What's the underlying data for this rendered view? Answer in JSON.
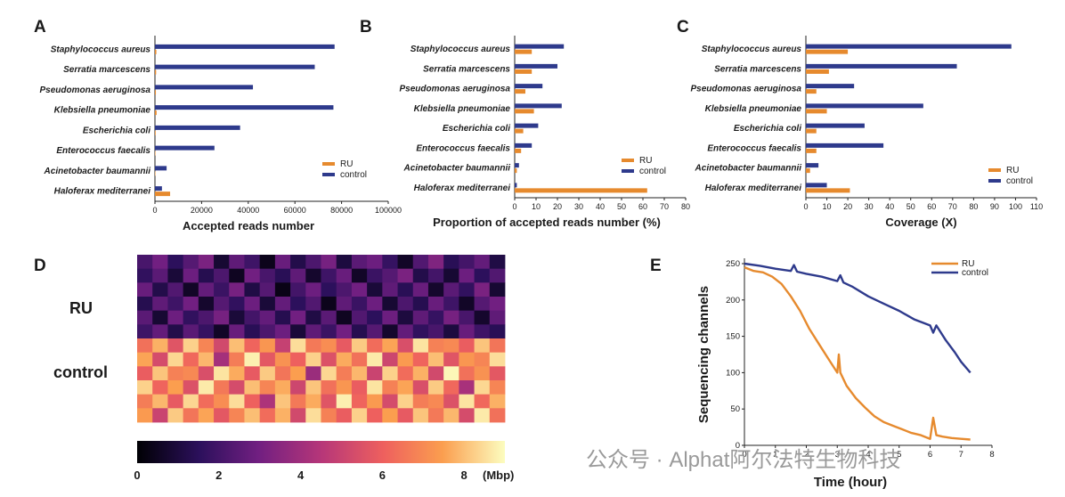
{
  "colors": {
    "RU": "#e68a2e",
    "control": "#2e3a8c",
    "heatmap_scale": [
      "#000004",
      "#2c105c",
      "#711f81",
      "#b63679",
      "#ee605e",
      "#fb9e4f",
      "#fcfdbf"
    ]
  },
  "chart_data": [
    {
      "panel": "A",
      "type": "bar",
      "orientation": "horizontal",
      "categories": [
        "Staphylococcus aureus",
        "Serratia marcescens",
        "Pseudomonas aeruginosa",
        "Klebsiella pneumoniae",
        "Escherichia coli",
        "Enterococcus faecalis",
        "Acinetobacter baumannii",
        "Haloferax mediterranei"
      ],
      "series": [
        {
          "name": "RU",
          "values": [
            600,
            500,
            400,
            700,
            300,
            200,
            100,
            6500
          ]
        },
        {
          "name": "control",
          "values": [
            77000,
            68500,
            42000,
            76500,
            36500,
            25500,
            5000,
            3000
          ]
        }
      ],
      "xlabel": "Accepted reads number",
      "xlim": [
        0,
        100000
      ],
      "xticks": [
        "0",
        "20000",
        "40000",
        "60000",
        "80000",
        "100000"
      ],
      "legend": "right"
    },
    {
      "panel": "B",
      "type": "bar",
      "orientation": "horizontal",
      "categories": [
        "Staphylococcus aureus",
        "Serratia marcescens",
        "Pseudomonas aeruginosa",
        "Klebsiella pneumoniae",
        "Escherichia coli",
        "Enterococcus faecalis",
        "Acinetobacter baumannii",
        "Haloferax mediterranei"
      ],
      "series": [
        {
          "name": "RU",
          "values": [
            8,
            8,
            5,
            9,
            4,
            3,
            1,
            62
          ]
        },
        {
          "name": "control",
          "values": [
            23,
            20,
            13,
            22,
            11,
            8,
            2,
            1
          ]
        }
      ],
      "xlabel": "Proportion of accepted reads number (%)",
      "xlim": [
        0,
        80
      ],
      "xticks": [
        "0",
        "10",
        "20",
        "30",
        "40",
        "50",
        "60",
        "70",
        "80"
      ],
      "legend": "right"
    },
    {
      "panel": "C",
      "type": "bar",
      "orientation": "horizontal",
      "categories": [
        "Staphylococcus aureus",
        "Serratia marcescens",
        "Pseudomonas aeruginosa",
        "Klebsiella pneumoniae",
        "Escherichia coli",
        "Enterococcus faecalis",
        "Acinetobacter baumannii",
        "Haloferax mediterranei"
      ],
      "series": [
        {
          "name": "RU",
          "values": [
            20,
            11,
            5,
            10,
            5,
            5,
            2,
            21
          ]
        },
        {
          "name": "control",
          "values": [
            98,
            72,
            23,
            56,
            28,
            37,
            6,
            10
          ]
        }
      ],
      "xlabel": "Coverage (X)",
      "xlim": [
        0,
        110
      ],
      "xticks": [
        "0",
        "10",
        "20",
        "30",
        "40",
        "50",
        "60",
        "70",
        "80",
        "90",
        "100",
        "110"
      ],
      "legend": "bottom-right"
    },
    {
      "panel": "D",
      "type": "heatmap",
      "row_groups": [
        "RU",
        "control"
      ],
      "rows_per_group": 6,
      "columns": 24,
      "colorbar": {
        "min": 0,
        "max": 9,
        "ticks": [
          "0",
          "2",
          "4",
          "6",
          "8"
        ],
        "unit": "(Mbp)"
      },
      "ru_values": [
        [
          2.1,
          3.0,
          1.5,
          2.4,
          3.2,
          0.8,
          2.6,
          1.9,
          0.4,
          2.8,
          1.2,
          2.2,
          3.1,
          1.0,
          2.5,
          2.9,
          1.7,
          0.6,
          2.3,
          3.3,
          1.4,
          2.0,
          2.7,
          1.1
        ],
        [
          1.6,
          2.5,
          0.9,
          2.9,
          1.3,
          2.2,
          0.5,
          3.0,
          2.1,
          1.4,
          2.6,
          0.7,
          1.9,
          2.8,
          0.6,
          1.8,
          2.4,
          3.2,
          1.2,
          2.0,
          0.8,
          2.9,
          1.5,
          2.3
        ],
        [
          2.8,
          1.2,
          2.3,
          0.6,
          2.7,
          1.8,
          3.1,
          1.1,
          2.4,
          0.3,
          2.0,
          2.9,
          1.5,
          2.2,
          3.0,
          0.9,
          2.6,
          1.4,
          2.8,
          0.7,
          2.5,
          1.6,
          3.2,
          0.8
        ],
        [
          1.3,
          2.6,
          1.9,
          3.0,
          0.7,
          2.4,
          1.6,
          2.9,
          0.9,
          2.7,
          1.5,
          2.3,
          0.4,
          2.6,
          1.8,
          2.9,
          0.8,
          2.2,
          1.3,
          2.8,
          1.9,
          0.6,
          2.4,
          3.0
        ],
        [
          2.5,
          0.8,
          2.9,
          1.6,
          2.2,
          3.1,
          0.9,
          2.0,
          2.7,
          1.3,
          3.0,
          1.1,
          2.5,
          0.5,
          2.3,
          1.5,
          2.9,
          1.0,
          2.6,
          1.7,
          3.1,
          2.1,
          0.7,
          2.6
        ],
        [
          1.9,
          2.7,
          1.2,
          2.5,
          1.7,
          0.6,
          2.8,
          1.4,
          2.2,
          2.9,
          0.9,
          2.6,
          1.8,
          3.0,
          1.3,
          2.4,
          0.7,
          2.7,
          1.6,
          2.1,
          1.0,
          2.8,
          1.9,
          1.4
        ]
      ],
      "control_values": [
        [
          6.4,
          7.8,
          5.6,
          8.3,
          6.9,
          5.2,
          8.0,
          6.1,
          7.3,
          4.9,
          8.5,
          6.6,
          7.1,
          5.8,
          8.2,
          6.3,
          7.6,
          5.4,
          8.6,
          6.8,
          7.0,
          5.9,
          8.1,
          6.5
        ],
        [
          7.6,
          5.3,
          8.4,
          6.2,
          7.9,
          4.1,
          6.7,
          8.8,
          5.7,
          7.2,
          6.0,
          8.3,
          5.5,
          7.7,
          6.4,
          8.7,
          5.1,
          7.4,
          6.1,
          8.0,
          5.6,
          7.3,
          6.9,
          8.5
        ],
        [
          5.9,
          8.1,
          6.8,
          7.0,
          5.4,
          8.6,
          7.7,
          5.8,
          8.2,
          6.5,
          7.5,
          3.9,
          8.4,
          6.7,
          7.9,
          5.0,
          8.3,
          6.3,
          7.8,
          5.2,
          8.9,
          6.4,
          7.2,
          5.7
        ],
        [
          8.3,
          6.1,
          7.5,
          5.5,
          8.7,
          6.6,
          5.3,
          8.0,
          6.9,
          7.7,
          5.1,
          8.1,
          6.4,
          7.3,
          5.9,
          8.6,
          6.8,
          7.6,
          5.4,
          8.2,
          6.2,
          4.2,
          8.4,
          6.9
        ],
        [
          6.7,
          7.9,
          5.8,
          8.4,
          6.3,
          7.1,
          8.5,
          6.0,
          4.3,
          8.1,
          6.6,
          7.7,
          5.6,
          8.8,
          6.1,
          7.4,
          5.3,
          8.3,
          6.7,
          7.0,
          5.5,
          8.6,
          6.2,
          7.8
        ],
        [
          7.4,
          5.0,
          8.2,
          6.5,
          7.6,
          5.7,
          6.9,
          8.0,
          6.3,
          7.8,
          5.2,
          8.5,
          6.8,
          5.9,
          8.3,
          6.0,
          7.5,
          5.8,
          8.1,
          6.6,
          7.9,
          5.3,
          8.7,
          6.4
        ]
      ]
    },
    {
      "panel": "E",
      "type": "line",
      "xlabel": "Time (hour)",
      "ylabel": "Sequencing channels",
      "xlim": [
        0,
        8
      ],
      "ylim": [
        0,
        250
      ],
      "xticks": [
        "0",
        "1",
        "2",
        "3",
        "4",
        "5",
        "6",
        "7",
        "8"
      ],
      "yticks": [
        "0",
        "50",
        "100",
        "150",
        "200",
        "250"
      ],
      "legend": "top-right",
      "series": [
        {
          "name": "RU",
          "x": [
            0,
            0.3,
            0.6,
            0.9,
            1.2,
            1.5,
            1.8,
            2.1,
            2.4,
            2.7,
            3.0,
            3.05,
            3.1,
            3.3,
            3.6,
            3.9,
            4.2,
            4.5,
            4.8,
            5.1,
            5.4,
            5.7,
            6.0,
            6.1,
            6.2,
            6.4,
            6.7,
            7.0,
            7.3
          ],
          "y": [
            245,
            240,
            238,
            232,
            222,
            205,
            185,
            160,
            140,
            120,
            100,
            125,
            100,
            82,
            65,
            52,
            40,
            32,
            27,
            22,
            17,
            14,
            9,
            38,
            14,
            12,
            10,
            9,
            8
          ]
        },
        {
          "name": "control",
          "x": [
            0,
            0.5,
            1.0,
            1.5,
            1.6,
            1.7,
            2.0,
            2.5,
            3.0,
            3.1,
            3.2,
            3.5,
            4.0,
            4.5,
            5.0,
            5.5,
            6.0,
            6.1,
            6.2,
            6.5,
            6.8,
            7.0,
            7.3
          ],
          "y": [
            250,
            247,
            243,
            240,
            248,
            239,
            236,
            232,
            226,
            234,
            224,
            218,
            205,
            195,
            185,
            173,
            165,
            155,
            165,
            145,
            128,
            115,
            100
          ]
        }
      ]
    }
  ],
  "labels": {
    "panel_a": "A",
    "panel_b": "B",
    "panel_c": "C",
    "panel_d": "D",
    "panel_e": "E",
    "row_ru": "RU",
    "row_control": "control",
    "colorbar_unit": "(Mbp)",
    "watermark": "公众号 · Alphat阿尔法特生物科技"
  }
}
